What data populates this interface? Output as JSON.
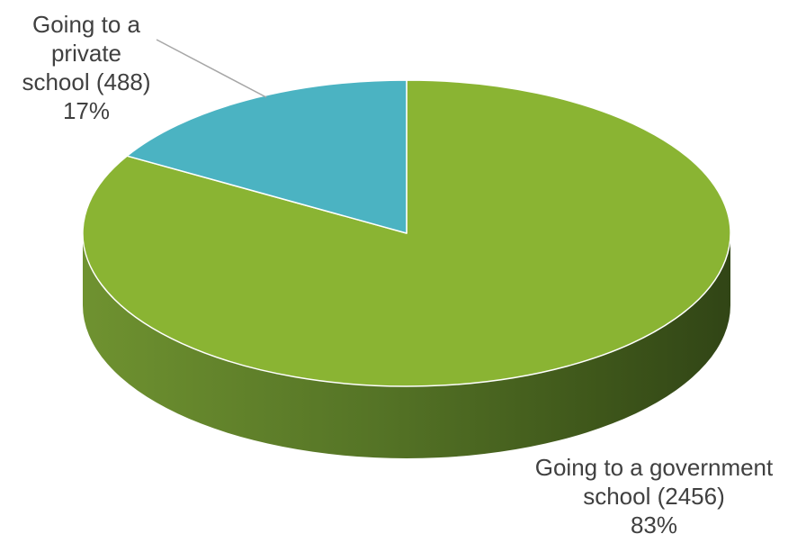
{
  "chart_data": {
    "type": "pie",
    "style": "3d",
    "title": "",
    "slices": [
      {
        "label_lines": [
          "Going to a government",
          "school (2456)"
        ],
        "value": 2456,
        "percent_label": "83%",
        "color": "#8ab433"
      },
      {
        "label_lines": [
          "Going to a",
          "private",
          "school (488)"
        ],
        "value": 488,
        "percent_label": "17%",
        "color": "#4bb3c2"
      }
    ],
    "start_angle_deg": 0,
    "direction": "clockwise",
    "legend": "none",
    "label_text_color": "#404040",
    "leader_line_color": "#a6a6a6",
    "slice_border_color": "#ffffff"
  }
}
